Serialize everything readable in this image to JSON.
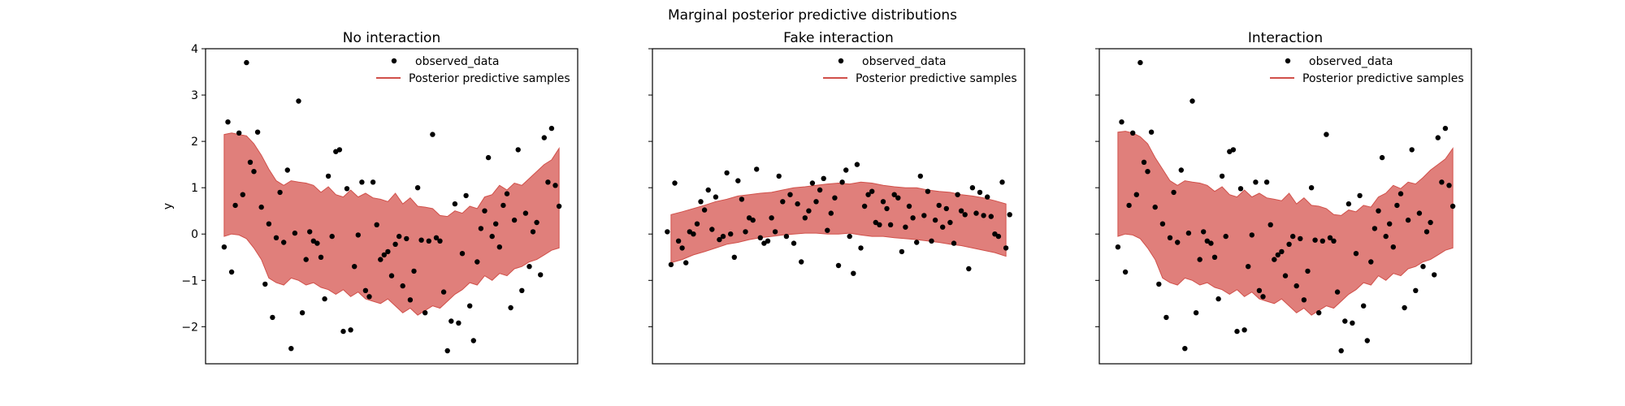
{
  "figure": {
    "suptitle": "Marginal posterior predictive distributions",
    "colors": {
      "band": "#e07f7b",
      "band_edge": "#d0504a",
      "points": "#000000",
      "axes": "#000000"
    }
  },
  "chart_data": [
    {
      "type": "scatter",
      "title": "No interaction",
      "ylabel": "y",
      "xlabel": "",
      "ylim": [
        -2.8,
        4.0
      ],
      "xlim": [
        0,
        1
      ],
      "yticks": [
        -2,
        -1,
        0,
        1,
        2,
        3,
        4
      ],
      "legend": {
        "placement": "top-right",
        "entries": [
          "observed_data",
          "Posterior predictive samples"
        ]
      },
      "band": {
        "x": [
          0.05,
          0.07,
          0.09,
          0.11,
          0.13,
          0.15,
          0.17,
          0.19,
          0.21,
          0.23,
          0.25,
          0.27,
          0.29,
          0.31,
          0.33,
          0.35,
          0.37,
          0.39,
          0.41,
          0.43,
          0.45,
          0.47,
          0.49,
          0.51,
          0.53,
          0.55,
          0.57,
          0.59,
          0.61,
          0.63,
          0.65,
          0.67,
          0.69,
          0.71,
          0.73,
          0.75,
          0.77,
          0.79,
          0.81,
          0.83,
          0.85,
          0.87,
          0.89,
          0.91,
          0.93,
          0.95
        ],
        "upper": [
          2.15,
          2.18,
          2.15,
          2.12,
          1.95,
          1.7,
          1.4,
          1.15,
          1.05,
          1.15,
          1.12,
          1.1,
          1.05,
          0.9,
          1.02,
          0.85,
          0.8,
          0.95,
          0.8,
          0.88,
          0.78,
          0.75,
          0.7,
          0.88,
          0.65,
          0.78,
          0.6,
          0.58,
          0.55,
          0.4,
          0.38,
          0.5,
          0.45,
          0.6,
          0.55,
          0.8,
          0.85,
          1.05,
          0.95,
          1.1,
          1.05,
          1.2,
          1.35,
          1.5,
          1.6,
          1.85
        ],
        "lower": [
          -0.05,
          0.0,
          -0.02,
          -0.1,
          -0.3,
          -0.55,
          -0.95,
          -1.05,
          -1.1,
          -0.95,
          -1.0,
          -1.1,
          -1.05,
          -1.15,
          -1.2,
          -1.3,
          -1.2,
          -1.35,
          -1.25,
          -1.4,
          -1.45,
          -1.5,
          -1.4,
          -1.55,
          -1.7,
          -1.6,
          -1.75,
          -1.65,
          -1.55,
          -1.6,
          -1.45,
          -1.3,
          -1.2,
          -1.05,
          -1.1,
          -0.9,
          -1.0,
          -0.85,
          -0.9,
          -0.75,
          -0.7,
          -0.6,
          -0.55,
          -0.45,
          -0.35,
          -0.3
        ]
      },
      "observed": {
        "x": [
          0.05,
          0.06,
          0.07,
          0.08,
          0.09,
          0.1,
          0.11,
          0.12,
          0.13,
          0.14,
          0.15,
          0.16,
          0.17,
          0.18,
          0.19,
          0.2,
          0.21,
          0.22,
          0.23,
          0.24,
          0.25,
          0.26,
          0.27,
          0.28,
          0.29,
          0.3,
          0.31,
          0.32,
          0.33,
          0.34,
          0.35,
          0.36,
          0.37,
          0.38,
          0.39,
          0.4,
          0.41,
          0.42,
          0.43,
          0.44,
          0.45,
          0.46,
          0.47,
          0.48,
          0.49,
          0.5,
          0.51,
          0.52,
          0.53,
          0.54,
          0.55,
          0.56,
          0.57,
          0.58,
          0.59,
          0.6,
          0.61,
          0.62,
          0.63,
          0.64,
          0.65,
          0.66,
          0.67,
          0.68,
          0.69,
          0.7,
          0.71,
          0.72,
          0.73,
          0.74,
          0.75,
          0.76,
          0.77,
          0.78,
          0.79,
          0.8,
          0.81,
          0.82,
          0.83,
          0.84,
          0.85,
          0.86,
          0.87,
          0.88,
          0.89,
          0.9,
          0.91,
          0.92,
          0.93,
          0.94,
          0.95
        ],
        "y": [
          -0.28,
          2.42,
          -0.82,
          0.62,
          2.18,
          0.85,
          3.7,
          1.55,
          1.35,
          2.2,
          0.58,
          -1.08,
          0.22,
          -1.8,
          -0.08,
          0.9,
          -0.18,
          1.38,
          -2.47,
          0.02,
          2.87,
          -1.7,
          -0.55,
          0.05,
          -0.15,
          -0.2,
          -0.5,
          -1.4,
          1.25,
          -0.05,
          1.78,
          1.82,
          -2.1,
          0.98,
          -2.07,
          -0.7,
          -0.02,
          1.12,
          -1.22,
          -1.35,
          1.12,
          0.2,
          -0.55,
          -0.45,
          -0.38,
          -0.9,
          -0.22,
          -0.05,
          -1.12,
          -0.1,
          -1.42,
          -0.8,
          1.0,
          -0.13,
          -1.7,
          -0.15,
          2.15,
          -0.08,
          -0.15,
          -1.25,
          -2.52,
          -1.88,
          0.65,
          -1.92,
          -0.42,
          0.83,
          -1.55,
          -2.3,
          -0.6,
          0.12,
          0.5,
          1.65,
          -0.05,
          0.22,
          -0.28,
          0.62,
          0.87,
          -1.59,
          0.3,
          1.82,
          -1.22,
          0.45,
          -0.7,
          0.05,
          0.25,
          -0.88,
          2.08,
          1.12,
          2.28,
          1.05,
          0.6
        ],
        "y_extra": []
      }
    },
    {
      "type": "scatter",
      "title": "Fake interaction",
      "ylabel": "",
      "xlabel": "",
      "ylim": [
        -2.8,
        4.0
      ],
      "xlim": [
        0,
        1
      ],
      "yticks": [
        -2,
        -1,
        0,
        1,
        2,
        3,
        4
      ],
      "legend": {
        "placement": "top-right",
        "entries": [
          "observed_data",
          "Posterior predictive samples"
        ]
      },
      "band": {
        "x": [
          0.05,
          0.08,
          0.11,
          0.14,
          0.17,
          0.2,
          0.23,
          0.26,
          0.29,
          0.32,
          0.35,
          0.38,
          0.41,
          0.44,
          0.47,
          0.5,
          0.53,
          0.56,
          0.59,
          0.62,
          0.65,
          0.68,
          0.71,
          0.74,
          0.77,
          0.8,
          0.83,
          0.86,
          0.89,
          0.92,
          0.95
        ],
        "upper": [
          0.42,
          0.48,
          0.55,
          0.62,
          0.7,
          0.75,
          0.82,
          0.85,
          0.88,
          0.9,
          0.95,
          1.0,
          1.02,
          1.05,
          1.08,
          1.1,
          1.08,
          1.12,
          1.1,
          1.05,
          1.02,
          1.0,
          1.0,
          0.95,
          0.92,
          0.9,
          0.85,
          0.82,
          0.78,
          0.72,
          0.65
        ],
        "lower": [
          -0.62,
          -0.55,
          -0.45,
          -0.38,
          -0.3,
          -0.22,
          -0.18,
          -0.12,
          -0.08,
          -0.05,
          -0.02,
          0.0,
          0.02,
          0.02,
          0.0,
          0.0,
          0.02,
          -0.02,
          -0.05,
          -0.05,
          -0.08,
          -0.1,
          -0.12,
          -0.15,
          -0.18,
          -0.22,
          -0.25,
          -0.3,
          -0.35,
          -0.4,
          -0.48
        ]
      },
      "observed": {
        "x": [
          0.04,
          0.05,
          0.06,
          0.07,
          0.08,
          0.09,
          0.1,
          0.11,
          0.12,
          0.13,
          0.14,
          0.15,
          0.16,
          0.17,
          0.18,
          0.19,
          0.2,
          0.21,
          0.22,
          0.23,
          0.24,
          0.25,
          0.26,
          0.27,
          0.28,
          0.29,
          0.3,
          0.31,
          0.32,
          0.33,
          0.34,
          0.35,
          0.36,
          0.37,
          0.38,
          0.39,
          0.4,
          0.41,
          0.42,
          0.43,
          0.44,
          0.45,
          0.46,
          0.47,
          0.48,
          0.49,
          0.5,
          0.51,
          0.52,
          0.53,
          0.54,
          0.55,
          0.56,
          0.57,
          0.58,
          0.59,
          0.6,
          0.61,
          0.62,
          0.63,
          0.64,
          0.65,
          0.66,
          0.67,
          0.68,
          0.69,
          0.7,
          0.71,
          0.72,
          0.73,
          0.74,
          0.75,
          0.76,
          0.77,
          0.78,
          0.79,
          0.8,
          0.81,
          0.82,
          0.83,
          0.84,
          0.85,
          0.86,
          0.87,
          0.88,
          0.89,
          0.9,
          0.91,
          0.92,
          0.93,
          0.94,
          0.95,
          0.96
        ],
        "y": [
          0.05,
          -0.66,
          1.1,
          -0.15,
          -0.3,
          -0.62,
          0.05,
          0.0,
          0.22,
          0.7,
          0.52,
          0.95,
          0.1,
          0.8,
          -0.12,
          -0.05,
          1.32,
          0.0,
          -0.5,
          1.15,
          0.75,
          0.05,
          0.35,
          0.3,
          1.4,
          -0.08,
          -0.2,
          -0.15,
          0.35,
          0.05,
          1.25,
          0.7,
          -0.05,
          0.85,
          -0.2,
          0.65,
          -0.6,
          0.35,
          0.5,
          1.1,
          0.7,
          0.95,
          1.2,
          0.08,
          0.45,
          0.78,
          -0.68,
          1.12,
          1.38,
          -0.05,
          -0.85,
          1.5,
          -0.3,
          0.6,
          0.85,
          0.92,
          0.25,
          0.2,
          0.7,
          0.55,
          0.2,
          0.85,
          0.78,
          -0.38,
          0.15,
          0.6,
          0.35,
          -0.18,
          1.25,
          0.4,
          0.92,
          -0.15,
          0.3,
          0.62,
          0.15,
          0.55,
          0.25,
          -0.2,
          0.85,
          0.5,
          0.42,
          -0.75,
          1.0,
          0.45,
          0.9,
          0.4,
          0.8,
          0.38,
          0.0,
          -0.05,
          1.12,
          -0.3,
          0.42
        ],
        "y_extra": []
      }
    },
    {
      "type": "scatter",
      "title": "Interaction",
      "ylabel": "",
      "xlabel": "",
      "ylim": [
        -2.8,
        4.0
      ],
      "xlim": [
        0,
        1
      ],
      "yticks": [
        -2,
        -1,
        0,
        1,
        2,
        3,
        4
      ],
      "legend": {
        "placement": "top-right",
        "entries": [
          "observed_data",
          "Posterior predictive samples"
        ]
      },
      "band": {
        "x": [
          0.05,
          0.07,
          0.09,
          0.11,
          0.13,
          0.15,
          0.17,
          0.19,
          0.21,
          0.23,
          0.25,
          0.27,
          0.29,
          0.31,
          0.33,
          0.35,
          0.37,
          0.39,
          0.41,
          0.43,
          0.45,
          0.47,
          0.49,
          0.51,
          0.53,
          0.55,
          0.57,
          0.59,
          0.61,
          0.63,
          0.65,
          0.67,
          0.69,
          0.71,
          0.73,
          0.75,
          0.77,
          0.79,
          0.81,
          0.83,
          0.85,
          0.87,
          0.89,
          0.91,
          0.93,
          0.95
        ],
        "upper": [
          2.2,
          2.22,
          2.18,
          2.1,
          1.95,
          1.65,
          1.4,
          1.15,
          1.05,
          1.15,
          1.12,
          1.1,
          1.05,
          0.92,
          1.02,
          0.85,
          0.8,
          0.95,
          0.8,
          0.88,
          0.78,
          0.75,
          0.72,
          0.88,
          0.65,
          0.78,
          0.62,
          0.6,
          0.55,
          0.42,
          0.4,
          0.52,
          0.48,
          0.62,
          0.58,
          0.8,
          0.88,
          1.05,
          0.98,
          1.12,
          1.08,
          1.22,
          1.38,
          1.5,
          1.62,
          1.85
        ],
        "lower": [
          -0.05,
          0.0,
          -0.02,
          -0.1,
          -0.3,
          -0.55,
          -0.95,
          -1.05,
          -1.1,
          -0.95,
          -1.0,
          -1.1,
          -1.05,
          -1.15,
          -1.2,
          -1.3,
          -1.2,
          -1.35,
          -1.25,
          -1.4,
          -1.45,
          -1.5,
          -1.4,
          -1.55,
          -1.7,
          -1.6,
          -1.75,
          -1.65,
          -1.55,
          -1.6,
          -1.45,
          -1.3,
          -1.2,
          -1.05,
          -1.1,
          -0.9,
          -1.0,
          -0.85,
          -0.9,
          -0.75,
          -0.7,
          -0.6,
          -0.55,
          -0.45,
          -0.35,
          -0.3
        ]
      },
      "observed": {
        "x": [
          0.05,
          0.06,
          0.07,
          0.08,
          0.09,
          0.1,
          0.11,
          0.12,
          0.13,
          0.14,
          0.15,
          0.16,
          0.17,
          0.18,
          0.19,
          0.2,
          0.21,
          0.22,
          0.23,
          0.24,
          0.25,
          0.26,
          0.27,
          0.28,
          0.29,
          0.3,
          0.31,
          0.32,
          0.33,
          0.34,
          0.35,
          0.36,
          0.37,
          0.38,
          0.39,
          0.4,
          0.41,
          0.42,
          0.43,
          0.44,
          0.45,
          0.46,
          0.47,
          0.48,
          0.49,
          0.5,
          0.51,
          0.52,
          0.53,
          0.54,
          0.55,
          0.56,
          0.57,
          0.58,
          0.59,
          0.6,
          0.61,
          0.62,
          0.63,
          0.64,
          0.65,
          0.66,
          0.67,
          0.68,
          0.69,
          0.7,
          0.71,
          0.72,
          0.73,
          0.74,
          0.75,
          0.76,
          0.77,
          0.78,
          0.79,
          0.8,
          0.81,
          0.82,
          0.83,
          0.84,
          0.85,
          0.86,
          0.87,
          0.88,
          0.89,
          0.9,
          0.91,
          0.92,
          0.93,
          0.94,
          0.95
        ],
        "y": [
          -0.28,
          2.42,
          -0.82,
          0.62,
          2.18,
          0.85,
          3.7,
          1.55,
          1.35,
          2.2,
          0.58,
          -1.08,
          0.22,
          -1.8,
          -0.08,
          0.9,
          -0.18,
          1.38,
          -2.47,
          0.02,
          2.87,
          -1.7,
          -0.55,
          0.05,
          -0.15,
          -0.2,
          -0.5,
          -1.4,
          1.25,
          -0.05,
          1.78,
          1.82,
          -2.1,
          0.98,
          -2.07,
          -0.7,
          -0.02,
          1.12,
          -1.22,
          -1.35,
          1.12,
          0.2,
          -0.55,
          -0.45,
          -0.38,
          -0.9,
          -0.22,
          -0.05,
          -1.12,
          -0.1,
          -1.42,
          -0.8,
          1.0,
          -0.13,
          -1.7,
          -0.15,
          2.15,
          -0.08,
          -0.15,
          -1.25,
          -2.52,
          -1.88,
          0.65,
          -1.92,
          -0.42,
          0.83,
          -1.55,
          -2.3,
          -0.6,
          0.12,
          0.5,
          1.65,
          -0.05,
          0.22,
          -0.28,
          0.62,
          0.87,
          -1.59,
          0.3,
          1.82,
          -1.22,
          0.45,
          -0.7,
          0.05,
          0.25,
          -0.88,
          2.08,
          1.12,
          2.28,
          1.05,
          0.6
        ],
        "y_extra": []
      }
    }
  ]
}
